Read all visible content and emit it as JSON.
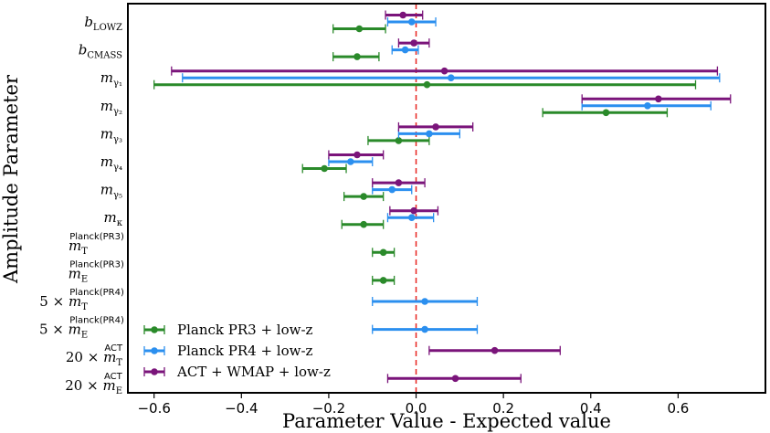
{
  "chart_data": {
    "type": "errorbar",
    "xlabel": "Parameter Value - Expected value",
    "ylabel": "Amplitude Parameter",
    "xlim": [
      -0.66,
      0.8
    ],
    "xticks": [
      -0.6,
      -0.4,
      -0.2,
      0.0,
      0.2,
      0.4,
      0.6
    ],
    "xtick_labels": [
      "−0.6",
      "−0.4",
      "−0.2",
      "0.0",
      "0.2",
      "0.4",
      "0.6"
    ],
    "reference_line": {
      "x": 0.0,
      "style": "dashed",
      "color": "#e8231f"
    },
    "legend_position": "lower-left",
    "parameters": [
      {
        "label_parts": [
          {
            "t": "b"
          },
          {
            "t": "LOWZ",
            "cls": "sub"
          }
        ]
      },
      {
        "label_parts": [
          {
            "t": "b"
          },
          {
            "t": "CMASS",
            "cls": "sub"
          }
        ]
      },
      {
        "label_parts": [
          {
            "t": "m"
          },
          {
            "t": "γ₁",
            "cls": "sub"
          }
        ]
      },
      {
        "label_parts": [
          {
            "t": "m"
          },
          {
            "t": "γ₂",
            "cls": "sub"
          }
        ]
      },
      {
        "label_parts": [
          {
            "t": "m"
          },
          {
            "t": "γ₃",
            "cls": "sub"
          }
        ]
      },
      {
        "label_parts": [
          {
            "t": "m"
          },
          {
            "t": "γ₄",
            "cls": "sub"
          }
        ]
      },
      {
        "label_parts": [
          {
            "t": "m"
          },
          {
            "t": "γ₅",
            "cls": "sub"
          }
        ]
      },
      {
        "label_parts": [
          {
            "t": "m"
          },
          {
            "t": "κ",
            "cls": "sub"
          }
        ]
      },
      {
        "label_parts": [
          {
            "t": "m"
          },
          {
            "t": "T",
            "cls": "sub"
          },
          {
            "t": "Planck(PR3)",
            "cls": "up"
          }
        ]
      },
      {
        "label_parts": [
          {
            "t": "m"
          },
          {
            "t": "E",
            "cls": "sub"
          },
          {
            "t": "Planck(PR3)",
            "cls": "up"
          }
        ]
      },
      {
        "label_parts": [
          {
            "t": "5 × ",
            "cls": "plain"
          },
          {
            "t": "m"
          },
          {
            "t": "T",
            "cls": "sub"
          },
          {
            "t": "Planck(PR4)",
            "cls": "up"
          }
        ]
      },
      {
        "label_parts": [
          {
            "t": "5 × ",
            "cls": "plain"
          },
          {
            "t": "m"
          },
          {
            "t": "E",
            "cls": "sub"
          },
          {
            "t": "Planck(PR4)",
            "cls": "up"
          }
        ]
      },
      {
        "label_parts": [
          {
            "t": "20 × ",
            "cls": "plain"
          },
          {
            "t": "m"
          },
          {
            "t": "T",
            "cls": "sub"
          },
          {
            "t": "ACT",
            "cls": "up"
          }
        ]
      },
      {
        "label_parts": [
          {
            "t": "20 × ",
            "cls": "plain"
          },
          {
            "t": "m"
          },
          {
            "t": "E",
            "cls": "sub"
          },
          {
            "t": "ACT",
            "cls": "up"
          }
        ]
      }
    ],
    "series": [
      {
        "name": "Planck PR3 + low-z",
        "color": "#2a8a2a",
        "points": [
          {
            "param": 0,
            "value": -0.13,
            "lo": -0.19,
            "hi": -0.07
          },
          {
            "param": 1,
            "value": -0.135,
            "lo": -0.19,
            "hi": -0.085
          },
          {
            "param": 2,
            "value": 0.025,
            "lo": -0.6,
            "hi": 0.64
          },
          {
            "param": 3,
            "value": 0.435,
            "lo": 0.29,
            "hi": 0.575
          },
          {
            "param": 4,
            "value": -0.04,
            "lo": -0.11,
            "hi": 0.03
          },
          {
            "param": 5,
            "value": -0.21,
            "lo": -0.26,
            "hi": -0.16
          },
          {
            "param": 6,
            "value": -0.12,
            "lo": -0.165,
            "hi": -0.075
          },
          {
            "param": 7,
            "value": -0.12,
            "lo": -0.17,
            "hi": -0.075
          },
          {
            "param": 8,
            "value": -0.075,
            "lo": -0.1,
            "hi": -0.05
          },
          {
            "param": 9,
            "value": -0.075,
            "lo": -0.1,
            "hi": -0.05
          }
        ]
      },
      {
        "name": "Planck PR4 + low-z",
        "color": "#2b8fef",
        "points": [
          {
            "param": 0,
            "value": -0.01,
            "lo": -0.065,
            "hi": 0.045
          },
          {
            "param": 1,
            "value": -0.025,
            "lo": -0.055,
            "hi": 0.005
          },
          {
            "param": 2,
            "value": 0.08,
            "lo": -0.535,
            "hi": 0.695
          },
          {
            "param": 3,
            "value": 0.53,
            "lo": 0.38,
            "hi": 0.675
          },
          {
            "param": 4,
            "value": 0.03,
            "lo": -0.04,
            "hi": 0.1
          },
          {
            "param": 5,
            "value": -0.15,
            "lo": -0.2,
            "hi": -0.1
          },
          {
            "param": 6,
            "value": -0.055,
            "lo": -0.1,
            "hi": -0.01
          },
          {
            "param": 7,
            "value": -0.01,
            "lo": -0.065,
            "hi": 0.04
          },
          {
            "param": 10,
            "value": 0.02,
            "lo": -0.1,
            "hi": 0.14
          },
          {
            "param": 11,
            "value": 0.02,
            "lo": -0.1,
            "hi": 0.14
          }
        ]
      },
      {
        "name": "ACT + WMAP + low-z",
        "color": "#7a147a",
        "points": [
          {
            "param": 0,
            "value": -0.03,
            "lo": -0.07,
            "hi": 0.015
          },
          {
            "param": 1,
            "value": -0.005,
            "lo": -0.04,
            "hi": 0.03
          },
          {
            "param": 2,
            "value": 0.065,
            "lo": -0.56,
            "hi": 0.69
          },
          {
            "param": 3,
            "value": 0.555,
            "lo": 0.38,
            "hi": 0.72
          },
          {
            "param": 4,
            "value": 0.045,
            "lo": -0.04,
            "hi": 0.13
          },
          {
            "param": 5,
            "value": -0.135,
            "lo": -0.2,
            "hi": -0.075
          },
          {
            "param": 6,
            "value": -0.04,
            "lo": -0.1,
            "hi": 0.02
          },
          {
            "param": 7,
            "value": -0.005,
            "lo": -0.06,
            "hi": 0.05
          },
          {
            "param": 12,
            "value": 0.18,
            "lo": 0.03,
            "hi": 0.33
          },
          {
            "param": 13,
            "value": 0.09,
            "lo": -0.065,
            "hi": 0.24
          }
        ]
      }
    ]
  }
}
